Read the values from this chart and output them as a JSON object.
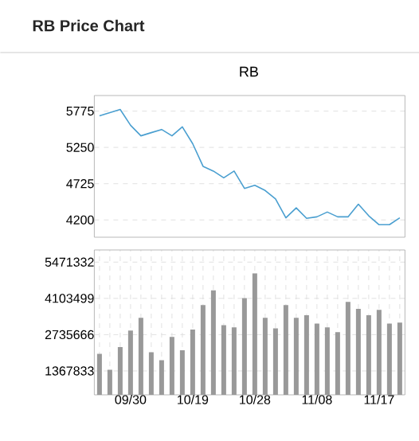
{
  "chart_data": [
    {
      "type": "line",
      "title": "RB Price Chart",
      "subtitle": "RB",
      "color": "#4a9fd0",
      "categories": [
        null,
        null,
        null,
        null,
        null,
        null,
        null,
        null,
        null,
        null,
        null,
        null,
        null,
        null,
        null,
        null,
        null,
        null,
        null,
        null,
        null,
        null,
        null,
        null,
        null,
        null,
        null,
        null,
        null,
        null
      ],
      "values": [
        5706,
        5752,
        5798,
        5570,
        5417,
        5463,
        5509,
        5417,
        5547,
        5303,
        4976,
        4907,
        4809,
        4907,
        4656,
        4702,
        4626,
        4504,
        4230,
        4375,
        4223,
        4245,
        4314,
        4245,
        4245,
        4428,
        4260,
        4131,
        4131,
        4230
      ],
      "ylim": [
        3950,
        6000
      ],
      "yticks": [
        4200,
        4725,
        5250,
        5775
      ],
      "grid": "y",
      "tick_labels": "y"
    },
    {
      "type": "bar",
      "color": "#999999",
      "categories": [
        null,
        null,
        null,
        "09/30",
        null,
        null,
        null,
        null,
        null,
        "10/19",
        null,
        null,
        null,
        null,
        null,
        "10/28",
        null,
        null,
        null,
        null,
        null,
        "11/08",
        null,
        null,
        null,
        null,
        null,
        "11/17",
        null,
        null
      ],
      "values": [
        2010000,
        1410000,
        2270000,
        2890000,
        3370000,
        2070000,
        1770000,
        2650000,
        2150000,
        2930000,
        3850000,
        4410000,
        3090000,
        3010000,
        4110000,
        5050000,
        3370000,
        2970000,
        3850000,
        3370000,
        3470000,
        3150000,
        3010000,
        2830000,
        3970000,
        3710000,
        3470000,
        3670000,
        3150000,
        3190000
      ],
      "ylim": [
        467000,
        5930000
      ],
      "yticks": [
        1367833,
        2735666,
        4103499,
        5471332
      ],
      "grid": true
    }
  ]
}
